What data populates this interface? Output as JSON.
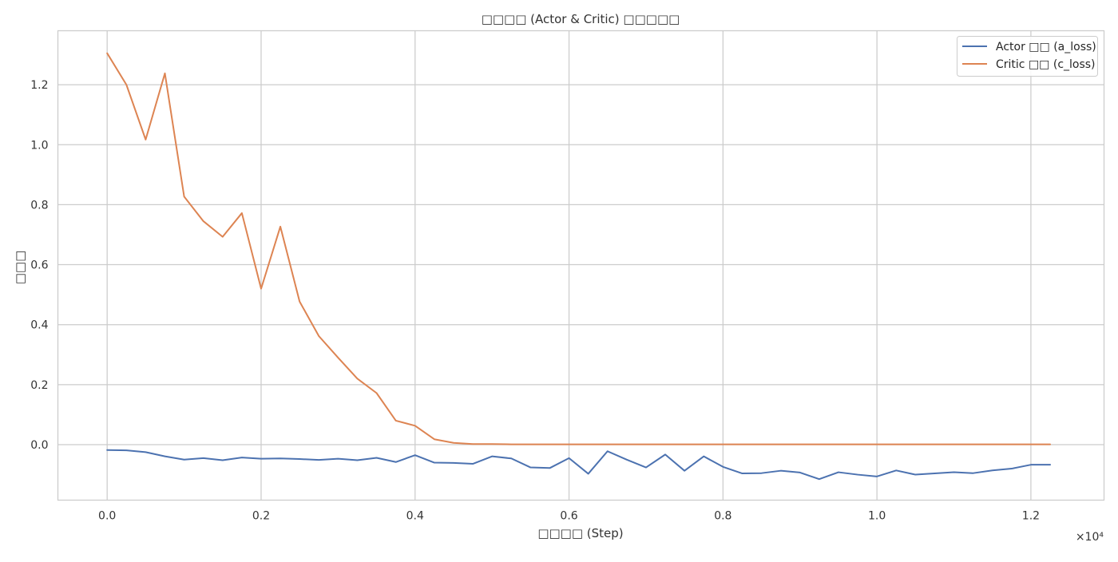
{
  "chart_data": {
    "type": "line",
    "title": "□□□□ (Actor & Critic) □□□□□",
    "xlabel": "□□□□ (Step)",
    "ylabel": "□□□",
    "x_scale_label": "×10⁴",
    "x_tick_labels": [
      "0.0",
      "0.2",
      "0.4",
      "0.6",
      "0.8",
      "1.0",
      "1.2"
    ],
    "x_ticks": [
      0,
      2000,
      4000,
      6000,
      8000,
      10000,
      12000
    ],
    "y_tick_labels": [
      "0.0",
      "0.2",
      "0.4",
      "0.6",
      "0.8",
      "1.0",
      "1.2"
    ],
    "y_ticks": [
      0.0,
      0.2,
      0.4,
      0.6,
      0.8,
      1.0,
      1.2
    ],
    "xlim": [
      -640,
      12950
    ],
    "ylim": [
      -0.185,
      1.38
    ],
    "grid": true,
    "legend_position": "top-right",
    "x": [
      0,
      250,
      500,
      750,
      1000,
      1250,
      1500,
      1750,
      2000,
      2250,
      2500,
      2750,
      3000,
      3250,
      3500,
      3750,
      4000,
      4250,
      4500,
      4750,
      5000,
      5250,
      5500,
      5750,
      6000,
      6250,
      6500,
      6750,
      7000,
      7250,
      7500,
      7750,
      8000,
      8250,
      8500,
      8750,
      9000,
      9250,
      9500,
      9750,
      10000,
      10250,
      10500,
      10750,
      11000,
      11250,
      11500,
      11750,
      12000,
      12250
    ],
    "series": [
      {
        "name": "Actor □□ (a_loss)",
        "color": "#4c72b0",
        "values": [
          -0.018,
          -0.019,
          -0.025,
          -0.039,
          -0.05,
          -0.045,
          -0.052,
          -0.043,
          -0.047,
          -0.046,
          -0.048,
          -0.051,
          -0.047,
          -0.052,
          -0.044,
          -0.058,
          -0.035,
          -0.06,
          -0.061,
          -0.064,
          -0.039,
          -0.046,
          -0.076,
          -0.078,
          -0.045,
          -0.097,
          -0.022,
          -0.05,
          -0.076,
          -0.033,
          -0.087,
          -0.039,
          -0.074,
          -0.096,
          -0.095,
          -0.087,
          -0.093,
          -0.115,
          -0.092,
          -0.1,
          -0.106,
          -0.086,
          -0.1,
          -0.096,
          -0.092,
          -0.095,
          -0.086,
          -0.08,
          -0.067,
          -0.067
        ]
      },
      {
        "name": "Critic □□ (c_loss)",
        "color": "#dd8452",
        "values": [
          1.305,
          1.2,
          1.017,
          1.238,
          0.827,
          0.745,
          0.693,
          0.772,
          0.52,
          0.727,
          0.477,
          0.362,
          0.29,
          0.22,
          0.172,
          0.08,
          0.063,
          0.018,
          0.006,
          0.002,
          0.002,
          0.001,
          0.001,
          0.001,
          0.001,
          0.001,
          0.001,
          0.001,
          0.001,
          0.001,
          0.001,
          0.001,
          0.001,
          0.001,
          0.001,
          0.001,
          0.001,
          0.001,
          0.001,
          0.001,
          0.001,
          0.001,
          0.001,
          0.001,
          0.001,
          0.001,
          0.001,
          0.001,
          0.001,
          0.001
        ]
      }
    ]
  }
}
